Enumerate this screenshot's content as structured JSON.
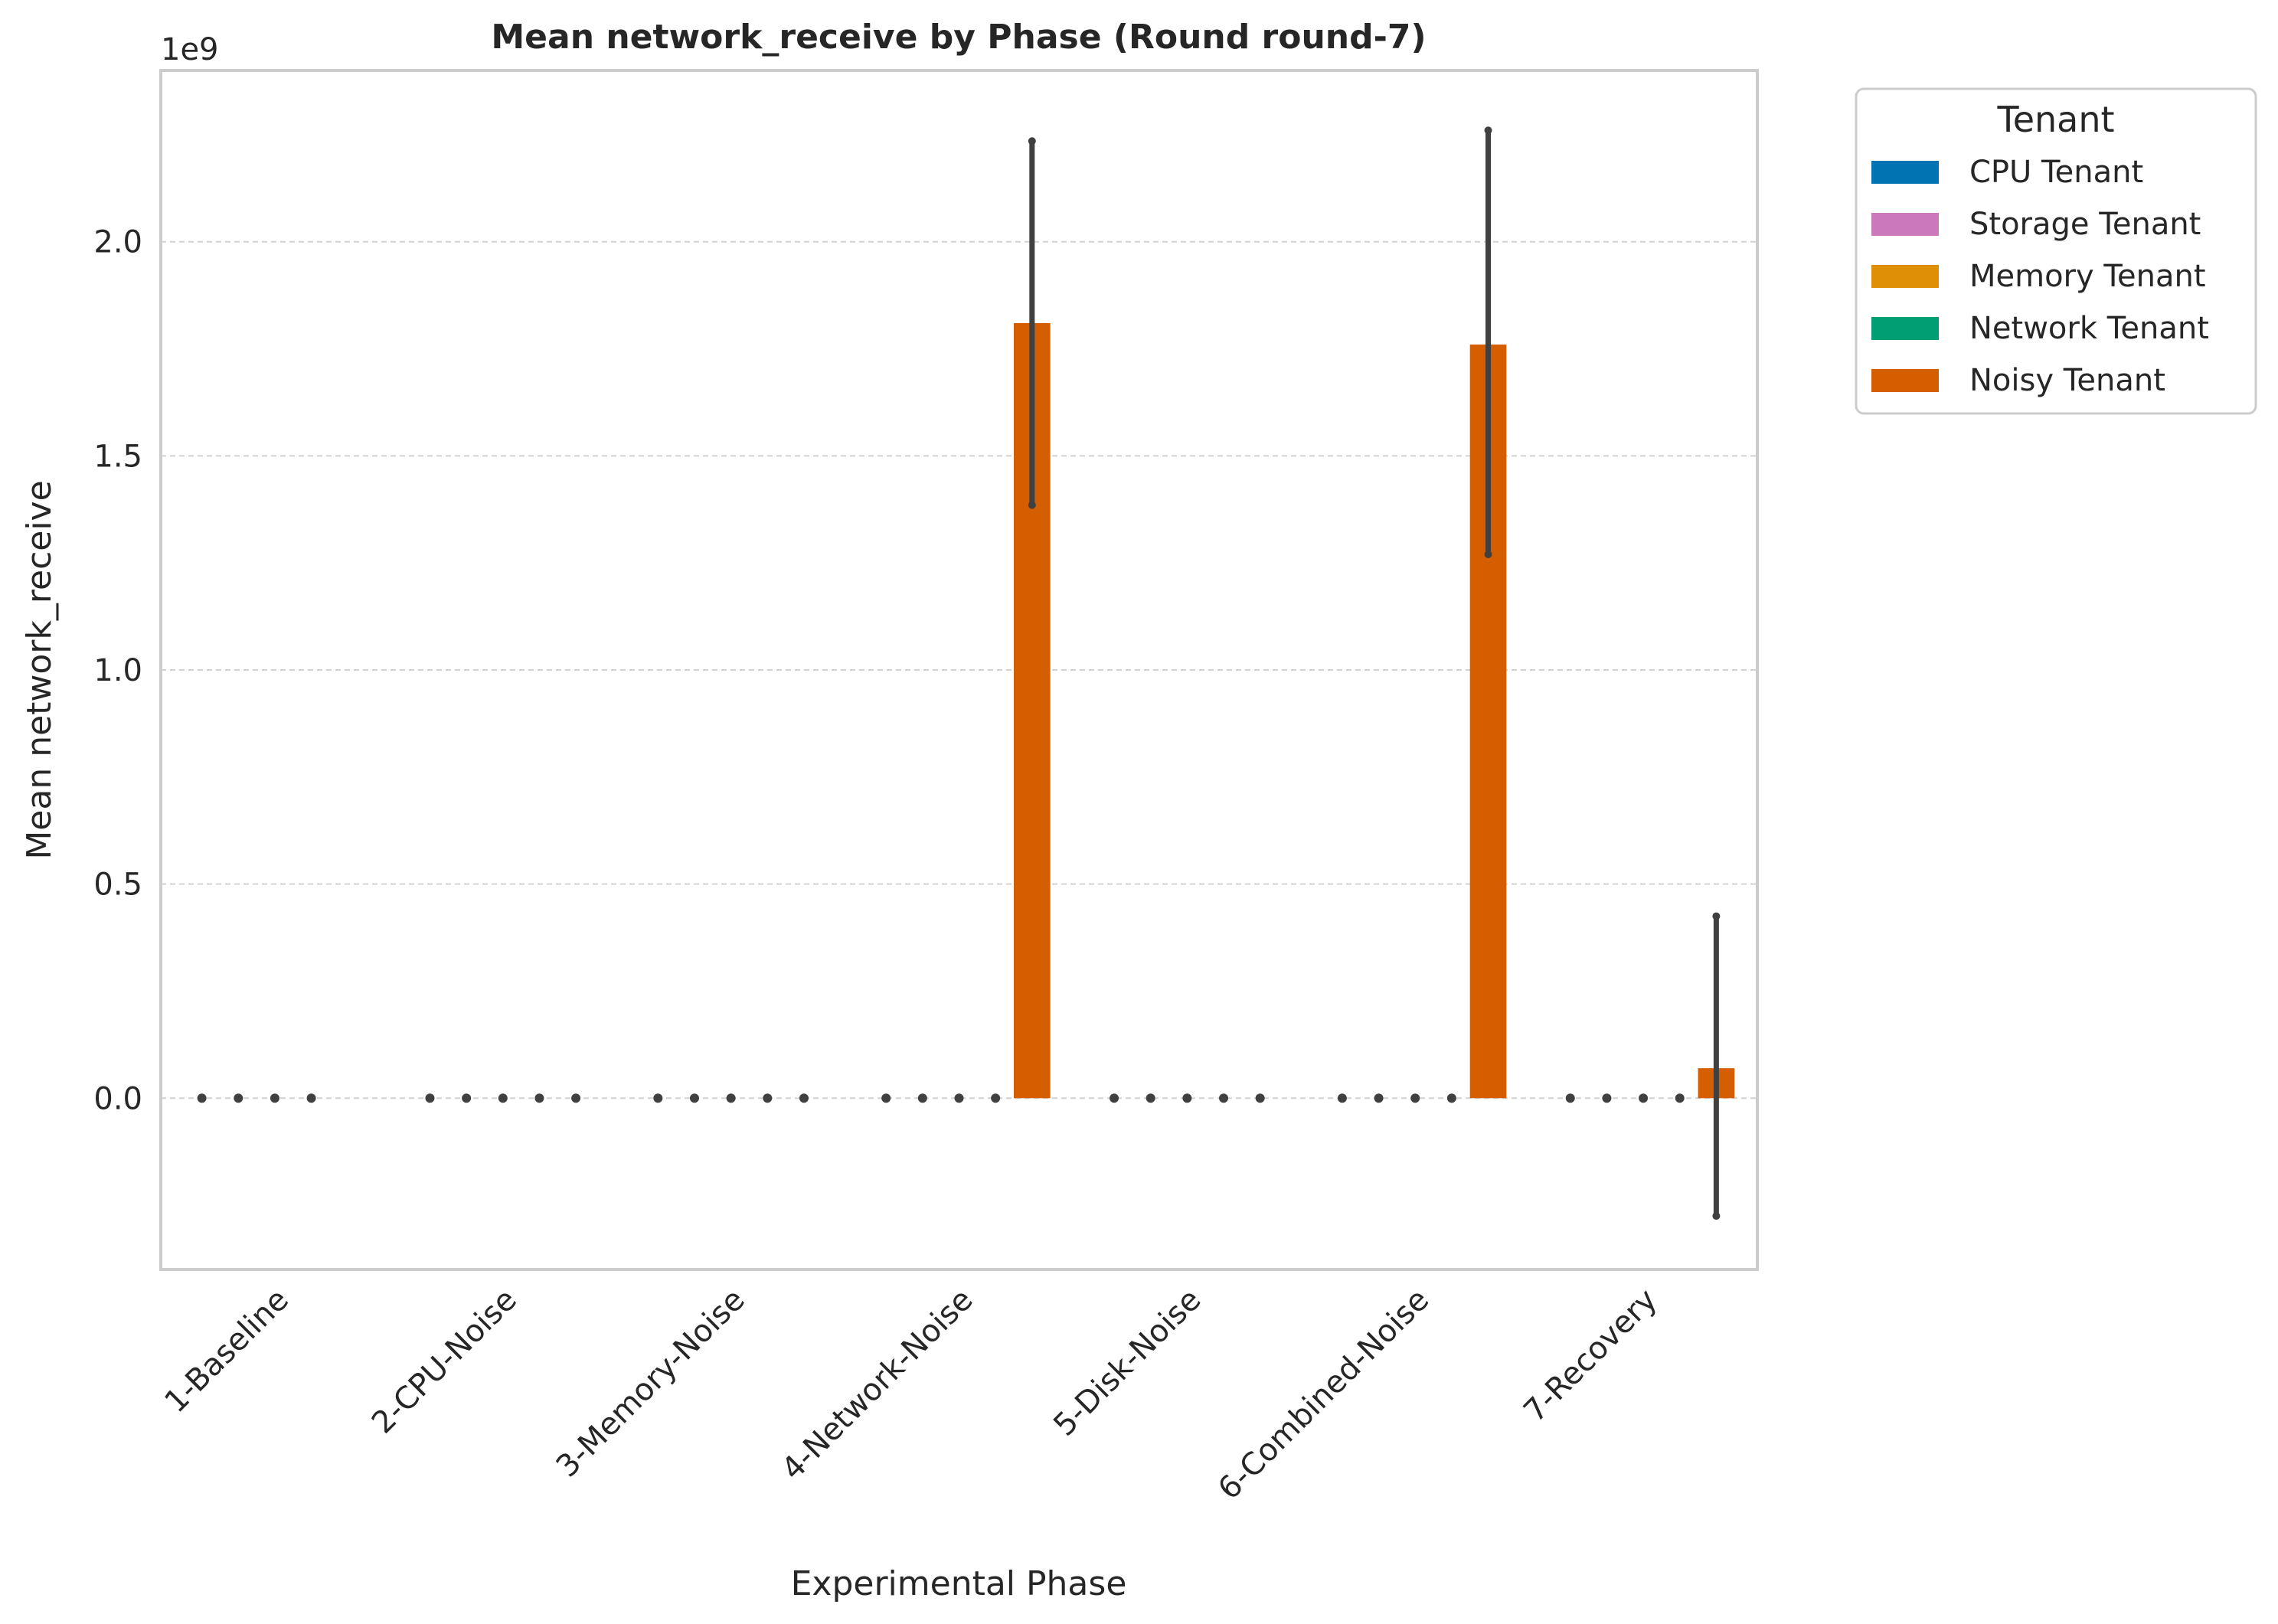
{
  "chart_data": {
    "type": "bar",
    "title": "Mean network_receive by Phase (Round round-7)",
    "xlabel": "Experimental Phase",
    "ylabel": "Mean network_receive",
    "y_offset_label": "1e9",
    "y_scale_factor": 1000000000,
    "ylim": [
      -0.4,
      2.4
    ],
    "yticks": [
      0.0,
      0.5,
      1.0,
      1.5,
      2.0
    ],
    "ytick_labels": [
      "0.0",
      "0.5",
      "1.0",
      "1.5",
      "2.0"
    ],
    "grid": "horizontal dashed",
    "legend_title": "Tenant",
    "legend_position": "outside upper right",
    "categories": [
      "1-Baseline",
      "2-CPU-Noise",
      "3-Memory-Noise",
      "4-Network-Noise",
      "5-Disk-Noise",
      "6-Combined-Noise",
      "7-Recovery"
    ],
    "series": [
      {
        "name": "CPU Tenant",
        "color": "#0173b2",
        "values": [
          0,
          0,
          0,
          0,
          0,
          0,
          0
        ],
        "ci_low": [
          0,
          0,
          0,
          0,
          0,
          0,
          0
        ],
        "ci_high": [
          0,
          0,
          0,
          0,
          0,
          0,
          0
        ]
      },
      {
        "name": "Storage Tenant",
        "color": "#cc78bc",
        "values": [
          0,
          0,
          0,
          0,
          0,
          0,
          0
        ],
        "ci_low": [
          0,
          0,
          0,
          0,
          0,
          0,
          0
        ],
        "ci_high": [
          0,
          0,
          0,
          0,
          0,
          0,
          0
        ]
      },
      {
        "name": "Memory Tenant",
        "color": "#de8f05",
        "values": [
          0,
          0,
          0,
          0,
          0,
          0,
          0
        ],
        "ci_low": [
          0,
          0,
          0,
          0,
          0,
          0,
          0
        ],
        "ci_high": [
          0,
          0,
          0,
          0,
          0,
          0,
          0
        ]
      },
      {
        "name": "Network Tenant",
        "color": "#029e73",
        "values": [
          0,
          0,
          0,
          0,
          0,
          0,
          0
        ],
        "ci_low": [
          0,
          0,
          0,
          0,
          0,
          0,
          0
        ],
        "ci_high": [
          0,
          0,
          0,
          0,
          0,
          0,
          0
        ]
      },
      {
        "name": "Noisy Tenant",
        "color": "#d55e00",
        "values": [
          null,
          0,
          0,
          1.81,
          0,
          1.76,
          0.07
        ],
        "ci_low": [
          null,
          0,
          0,
          1.385,
          0,
          1.27,
          -0.275
        ],
        "ci_high": [
          null,
          0,
          0,
          2.235,
          0,
          2.26,
          0.425
        ]
      }
    ]
  }
}
